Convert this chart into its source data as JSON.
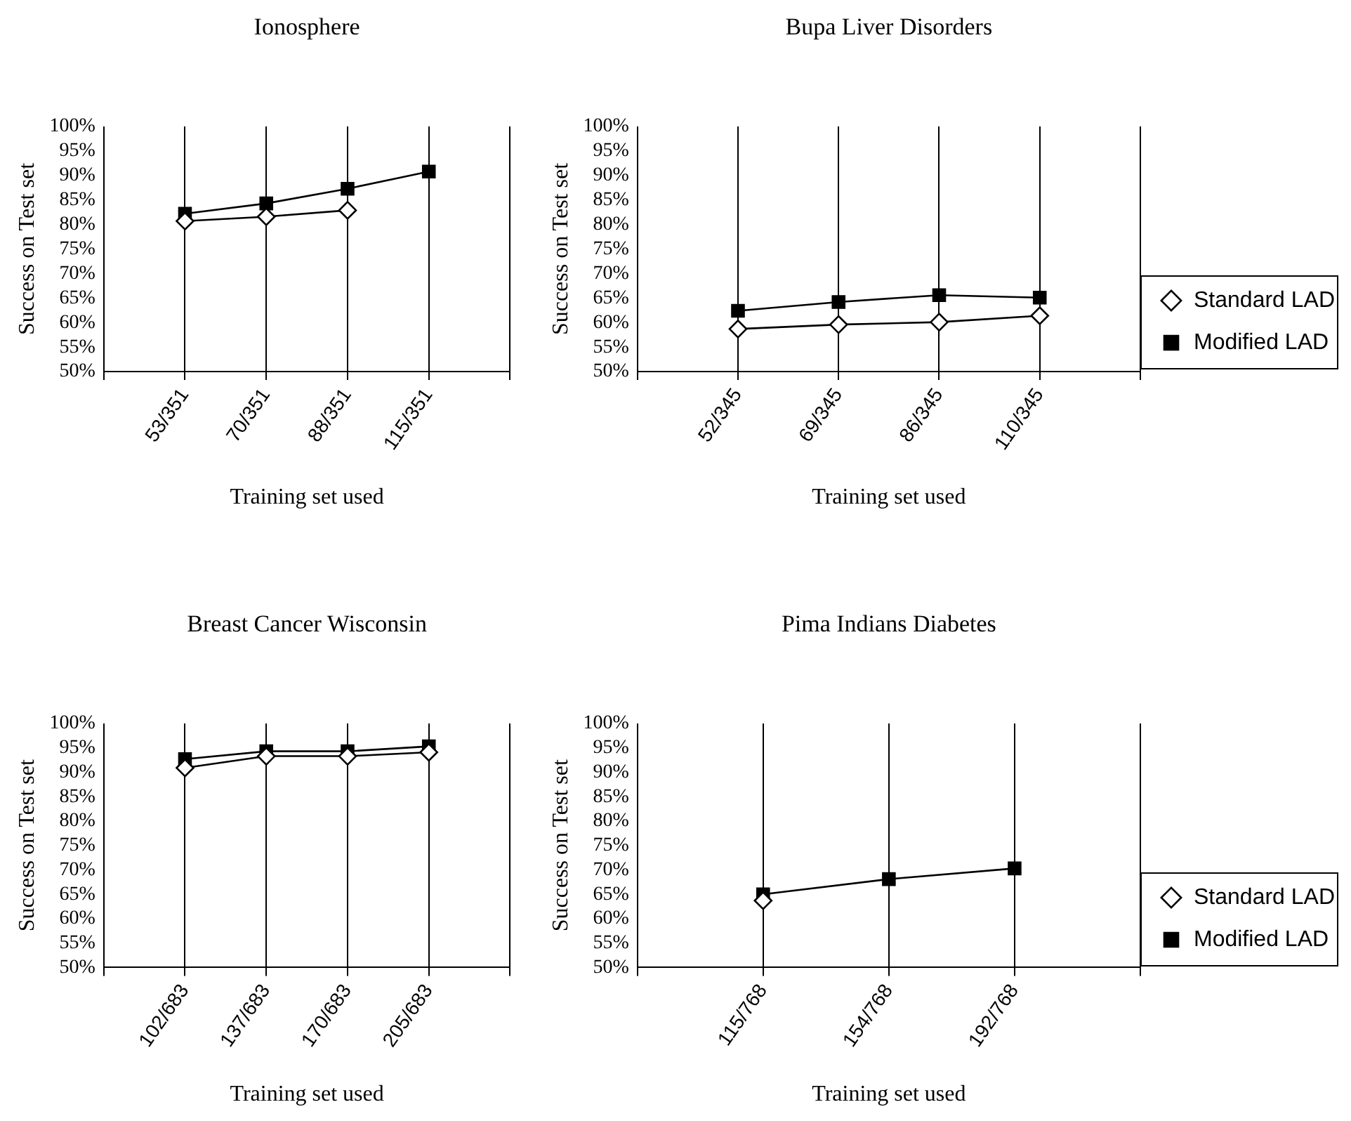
{
  "chart_data": [
    {
      "type": "line",
      "title": "Ionosphere",
      "xlabel": "Training set used",
      "ylabel": "Success on Test set",
      "categories": [
        null,
        "53/351",
        "70/351",
        "88/351",
        "115/351",
        null
      ],
      "ylim": [
        50,
        100
      ],
      "yticks": [
        {
          "value": 50,
          "label": "50%"
        },
        {
          "value": 55,
          "label": "55%"
        },
        {
          "value": 60,
          "label": "60%"
        },
        {
          "value": 65,
          "label": "65%"
        },
        {
          "value": 70,
          "label": "70%"
        },
        {
          "value": 75,
          "label": "75%"
        },
        {
          "value": 80,
          "label": "80%"
        },
        {
          "value": 85,
          "label": "85%"
        },
        {
          "value": 90,
          "label": "90%"
        },
        {
          "value": 95,
          "label": "95%"
        },
        {
          "value": 100,
          "label": "100%"
        }
      ],
      "grid": "x",
      "legend": false,
      "series": [
        {
          "color": "#000000",
          "marker": "diamond",
          "values": [
            null,
            80.7,
            81.6,
            82.9,
            null,
            null
          ]
        },
        {
          "color": "#000000",
          "marker": "square",
          "values": [
            null,
            82.2,
            84.3,
            87.3,
            90.8,
            null
          ]
        }
      ]
    },
    {
      "type": "line",
      "title": "Bupa Liver Disorders",
      "xlabel": "Training set used",
      "ylabel": "Success on Test set",
      "categories": [
        null,
        "52/345",
        "69/345",
        "86/345",
        "110/345",
        null
      ],
      "ylim": [
        50,
        100
      ],
      "yticks": [
        {
          "value": 50,
          "label": "50%"
        },
        {
          "value": 55,
          "label": "55%"
        },
        {
          "value": 60,
          "label": "60%"
        },
        {
          "value": 65,
          "label": "65%"
        },
        {
          "value": 70,
          "label": "70%"
        },
        {
          "value": 75,
          "label": "75%"
        },
        {
          "value": 80,
          "label": "80%"
        },
        {
          "value": 85,
          "label": "85%"
        },
        {
          "value": 90,
          "label": "90%"
        },
        {
          "value": 95,
          "label": "95%"
        },
        {
          "value": 100,
          "label": "100%"
        }
      ],
      "grid": "x",
      "legend": "right",
      "series": [
        {
          "name": "Standard LAD",
          "color": "#000000",
          "marker": "diamond",
          "values": [
            null,
            58.7,
            59.6,
            60.1,
            61.4,
            null
          ]
        },
        {
          "name": "Modified LAD",
          "color": "#000000",
          "marker": "square",
          "values": [
            null,
            62.4,
            64.2,
            65.6,
            65.1,
            null
          ]
        }
      ]
    },
    {
      "type": "line",
      "title": "Breast Cancer Wisconsin",
      "xlabel": "Training set used",
      "ylabel": "Success on Test set",
      "categories": [
        null,
        "102/683",
        "137/683",
        "170/683",
        "205/683",
        null
      ],
      "ylim": [
        50,
        100
      ],
      "yticks": [
        {
          "value": 50,
          "label": "50%"
        },
        {
          "value": 55,
          "label": "55%"
        },
        {
          "value": 60,
          "label": "60%"
        },
        {
          "value": 65,
          "label": "65%"
        },
        {
          "value": 70,
          "label": "70%"
        },
        {
          "value": 75,
          "label": "75%"
        },
        {
          "value": 80,
          "label": "80%"
        },
        {
          "value": 85,
          "label": "85%"
        },
        {
          "value": 90,
          "label": "90%"
        },
        {
          "value": 95,
          "label": "95%"
        },
        {
          "value": 100,
          "label": "100%"
        }
      ],
      "grid": "x",
      "legend": false,
      "series": [
        {
          "color": "#000000",
          "marker": "diamond",
          "values": [
            null,
            90.9,
            93.3,
            93.3,
            94.1,
            null
          ]
        },
        {
          "color": "#000000",
          "marker": "square",
          "values": [
            null,
            92.7,
            94.3,
            94.3,
            95.3,
            null
          ]
        }
      ]
    },
    {
      "type": "line",
      "title": "Pima Indians Diabetes",
      "xlabel": "Training set used",
      "ylabel": "Success on Test set",
      "categories": [
        null,
        "115/768",
        "154/768",
        "192/768",
        null
      ],
      "ylim": [
        50,
        100
      ],
      "yticks": [
        {
          "value": 50,
          "label": "50%"
        },
        {
          "value": 55,
          "label": "55%"
        },
        {
          "value": 60,
          "label": "60%"
        },
        {
          "value": 65,
          "label": "65%"
        },
        {
          "value": 70,
          "label": "70%"
        },
        {
          "value": 75,
          "label": "75%"
        },
        {
          "value": 80,
          "label": "80%"
        },
        {
          "value": 85,
          "label": "85%"
        },
        {
          "value": 90,
          "label": "90%"
        },
        {
          "value": 95,
          "label": "95%"
        },
        {
          "value": 100,
          "label": "100%"
        }
      ],
      "grid": "x",
      "legend": "right",
      "series": [
        {
          "name": "Standard LAD",
          "color": "#000000",
          "marker": "diamond",
          "values": [
            null,
            63.7,
            null,
            null,
            null
          ]
        },
        {
          "name": "Modified LAD",
          "color": "#000000",
          "marker": "square",
          "values": [
            null,
            65.0,
            68.1,
            70.3,
            null
          ]
        }
      ]
    }
  ]
}
